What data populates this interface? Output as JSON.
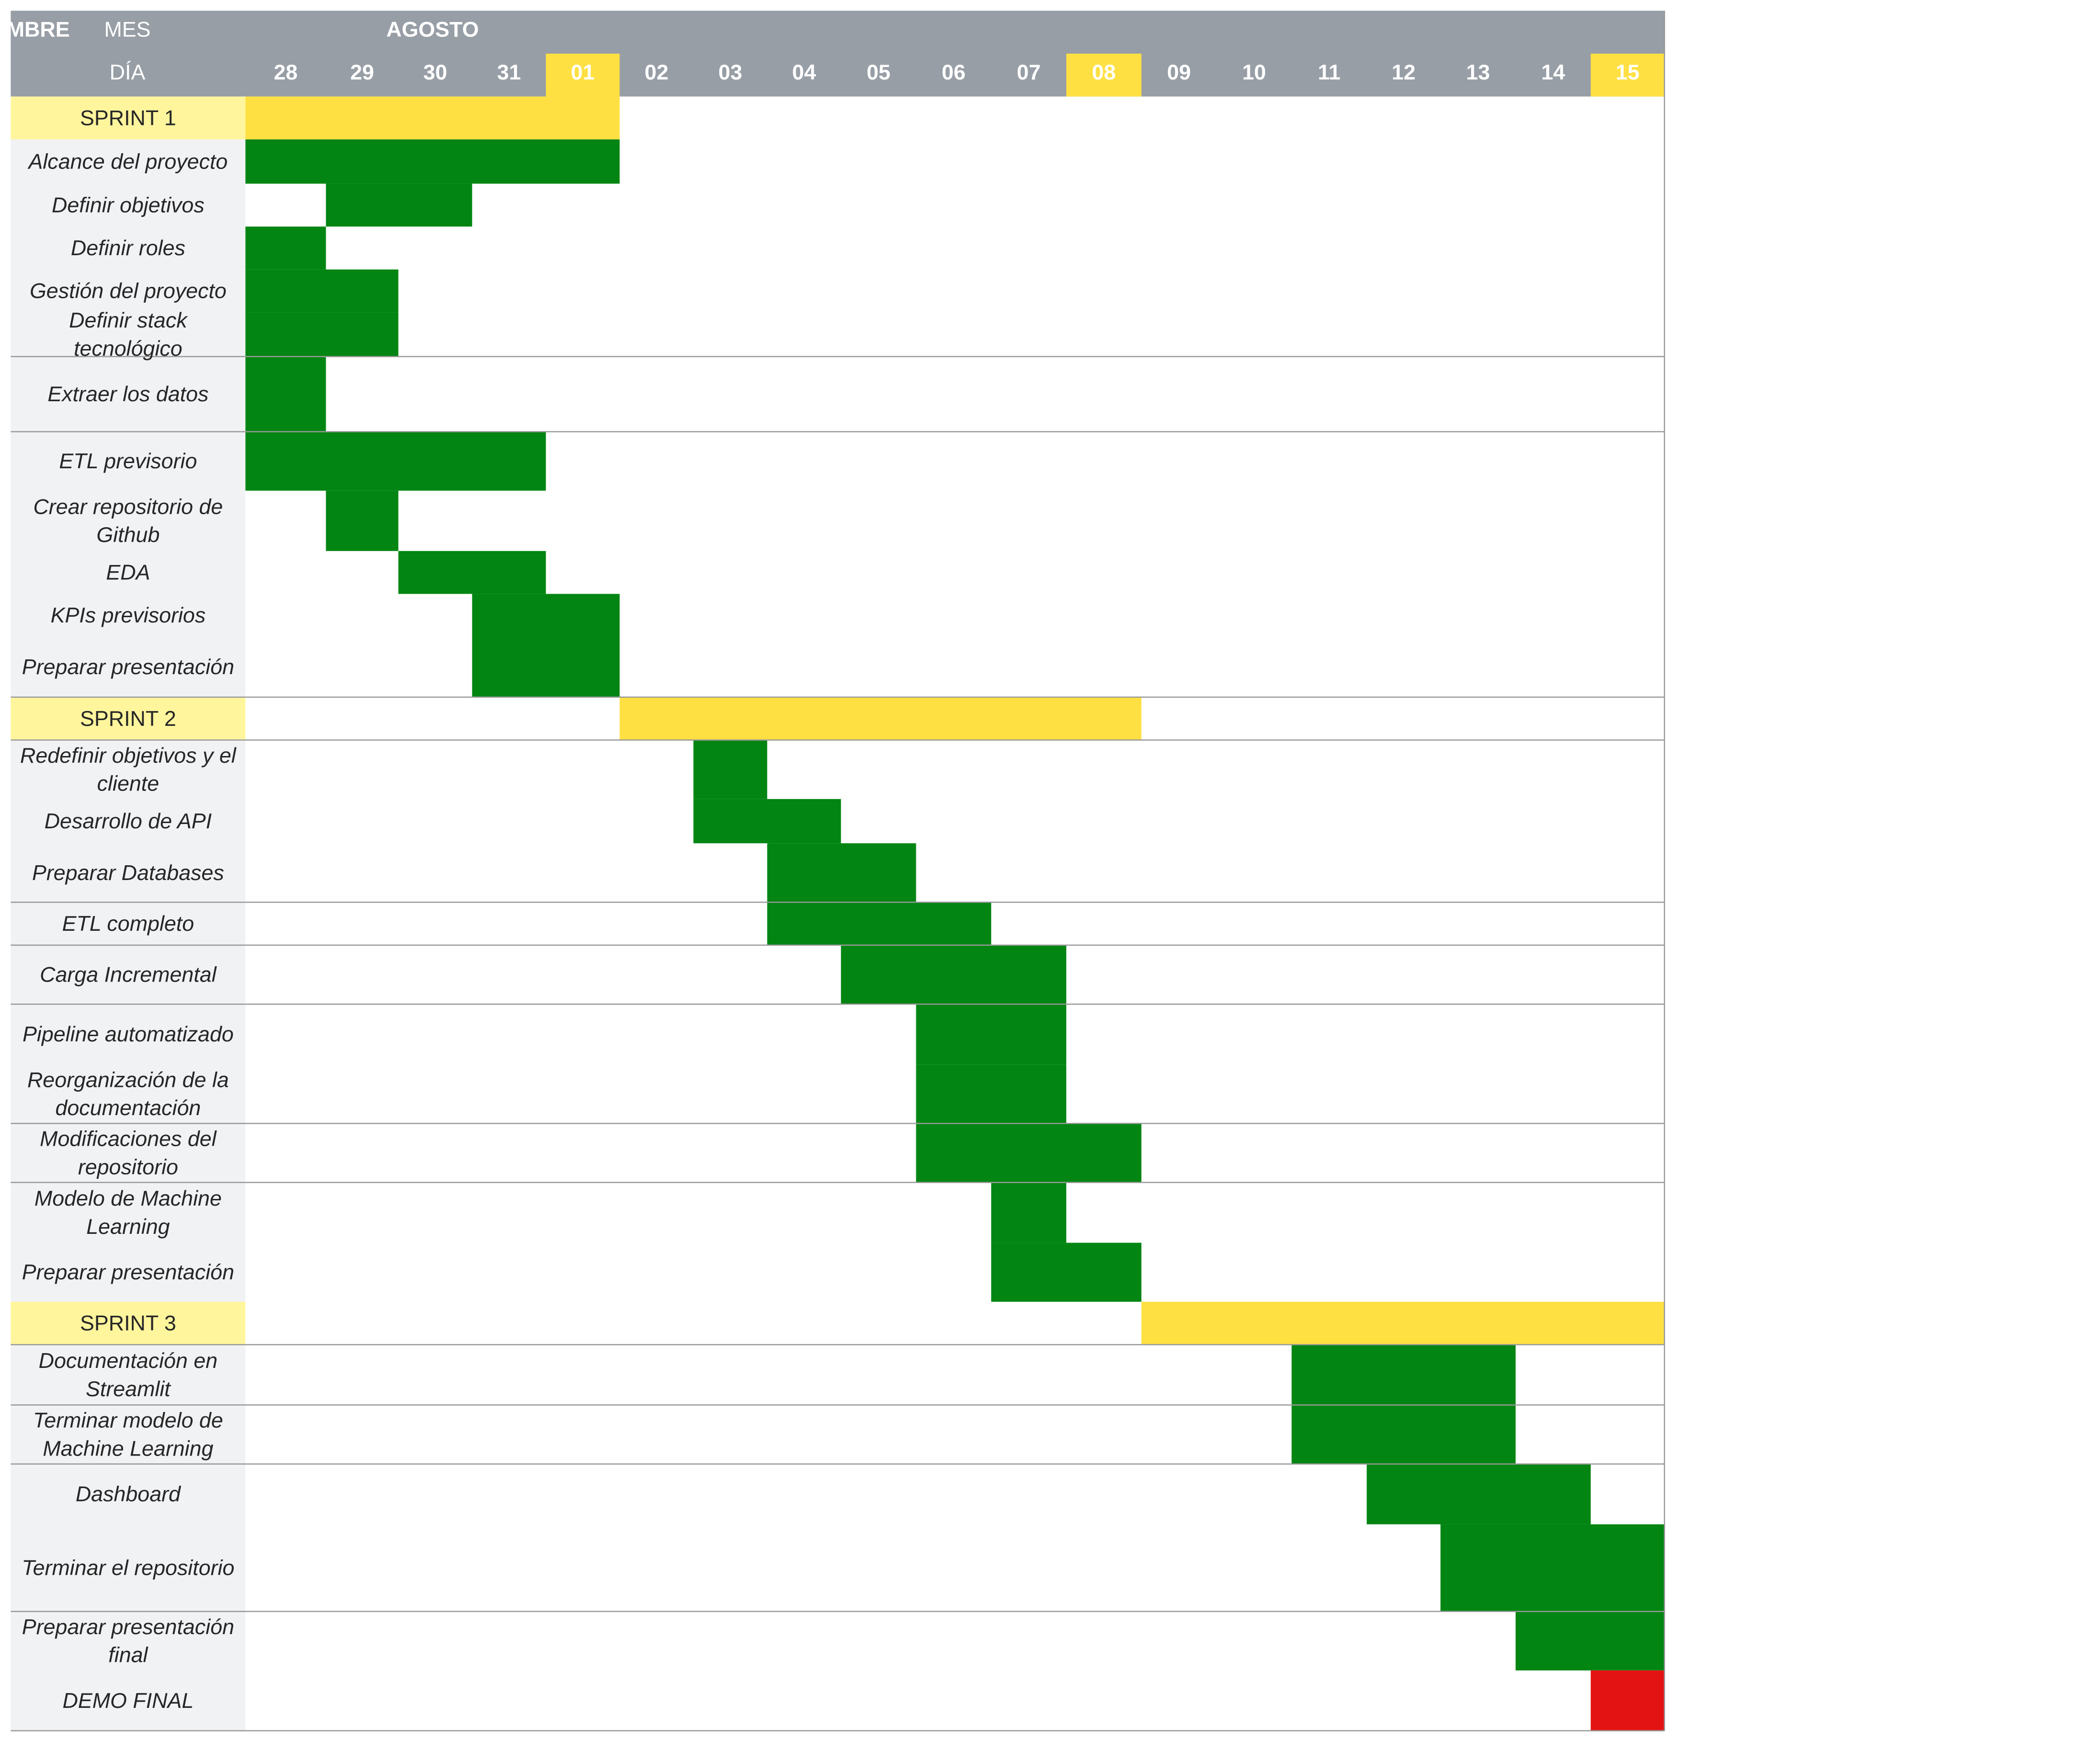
{
  "chart_data": {
    "type": "gantt",
    "header": {
      "month_label": "MES",
      "day_label": "DÍA",
      "months": [
        {
          "name": "AGOSTO",
          "start": 0,
          "end": 4
        },
        {
          "name": "SEPTIEMBRE",
          "start": 5,
          "end": 19
        }
      ]
    },
    "days": [
      "28",
      "29",
      "30",
      "31",
      "01",
      "02",
      "03",
      "04",
      "05",
      "06",
      "07",
      "08",
      "09",
      "10",
      "11",
      "12",
      "13",
      "14",
      "15"
    ],
    "highlight_days": [
      "01",
      "08",
      "15"
    ],
    "colors": {
      "header_bg": "#979ea6",
      "header_text": "#ffffff",
      "highlight": "#ffe042",
      "sprint_label_bg": "#fff59d",
      "task_label_bg": "#f1f2f4",
      "task_bar": "#028512",
      "demo_bar": "#e41313",
      "grid": "#999999",
      "text": "#262626"
    },
    "rows": [
      {
        "label": "SPRINT 1",
        "type": "sprint",
        "start": "28",
        "end": "01"
      },
      {
        "label": "Alcance del proyecto",
        "type": "task",
        "start": "28",
        "end": "01"
      },
      {
        "label": "Definir objetivos",
        "type": "task",
        "start": "29",
        "end": "30"
      },
      {
        "label": "Definir roles",
        "type": "task",
        "start": "28",
        "end": "28"
      },
      {
        "label": "Gestión del proyecto",
        "type": "task",
        "start": "28",
        "end": "29"
      },
      {
        "label": "Definir stack tecnológico",
        "type": "task",
        "start": "28",
        "end": "29"
      },
      {
        "label": "Extraer los datos",
        "type": "task",
        "start": "28",
        "end": "28"
      },
      {
        "label": "ETL previsorio",
        "type": "task",
        "start": "28",
        "end": "31"
      },
      {
        "label": "Crear repositorio de Github",
        "type": "task",
        "start": "29",
        "end": "29"
      },
      {
        "label": "EDA",
        "type": "task",
        "start": "30",
        "end": "31"
      },
      {
        "label": "KPIs previsorios",
        "type": "task",
        "start": "31",
        "end": "01"
      },
      {
        "label": "Preparar presentación",
        "type": "task",
        "start": "31",
        "end": "01"
      },
      {
        "label": "SPRINT 2",
        "type": "sprint",
        "start": "02",
        "end": "08"
      },
      {
        "label": "Redefinir objetivos y el cliente",
        "type": "task",
        "start": "03",
        "end": "03"
      },
      {
        "label": "Desarrollo de API",
        "type": "task",
        "start": "03",
        "end": "04"
      },
      {
        "label": "Preparar Databases",
        "type": "task",
        "start": "04",
        "end": "05"
      },
      {
        "label": "ETL completo",
        "type": "task",
        "start": "04",
        "end": "06"
      },
      {
        "label": "Carga Incremental",
        "type": "task",
        "start": "05",
        "end": "07"
      },
      {
        "label": "Pipeline automatizado",
        "type": "task",
        "start": "06",
        "end": "07"
      },
      {
        "label": "Reorganización de la documentación",
        "type": "task",
        "start": "06",
        "end": "07"
      },
      {
        "label": "Modificaciones del repositorio",
        "type": "task",
        "start": "06",
        "end": "08"
      },
      {
        "label": "Modelo de Machine Learning",
        "type": "task",
        "start": "07",
        "end": "07"
      },
      {
        "label": "Preparar presentación",
        "type": "task",
        "start": "07",
        "end": "08"
      },
      {
        "label": "SPRINT 3",
        "type": "sprint",
        "start": "09",
        "end": "15"
      },
      {
        "label": "Documentación en Streamlit",
        "type": "task",
        "start": "11",
        "end": "13"
      },
      {
        "label": "Terminar modelo de Machine Learning",
        "type": "task",
        "start": "11",
        "end": "13"
      },
      {
        "label": "Dashboard",
        "type": "task",
        "start": "12",
        "end": "14"
      },
      {
        "label": "Terminar el repositorio",
        "type": "task",
        "start": "13",
        "end": "15"
      },
      {
        "label": "Preparar presentación final",
        "type": "task",
        "start": "14",
        "end": "15"
      },
      {
        "label": "DEMO FINAL",
        "type": "milestone",
        "start": "15",
        "end": "15"
      }
    ]
  }
}
